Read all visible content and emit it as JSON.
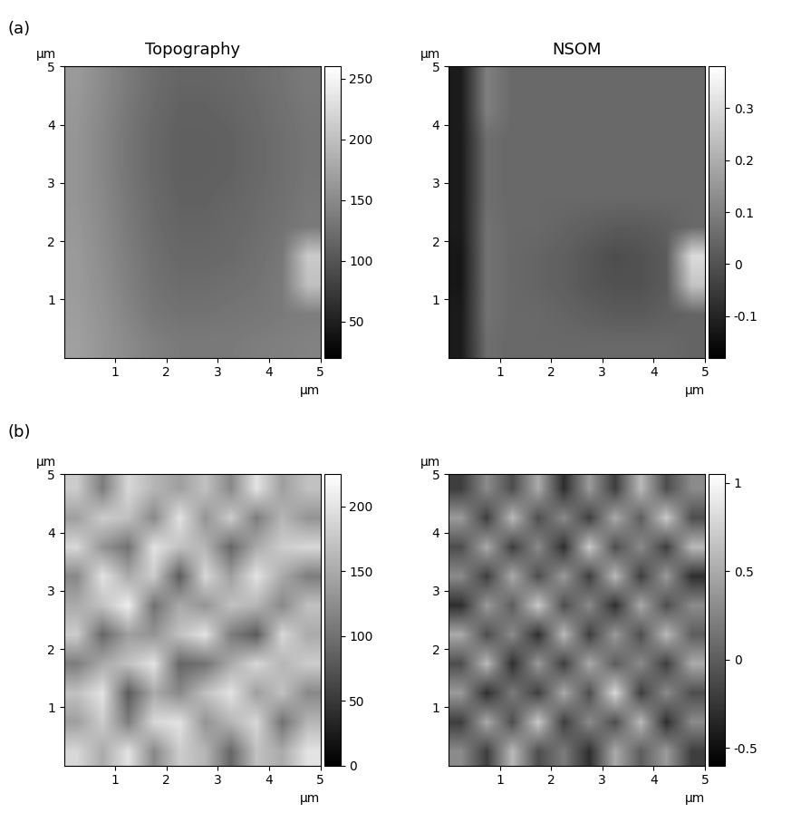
{
  "panel_labels": [
    "(a)",
    "(b)"
  ],
  "chart_data": [
    {
      "type": "heatmap",
      "title": "Topography",
      "x_label": "μm",
      "y_label": "μm",
      "xlim": [
        0,
        5
      ],
      "ylim": [
        0,
        5
      ],
      "xticks": [
        1,
        2,
        3,
        4,
        5
      ],
      "yticks": [
        1,
        2,
        3,
        4,
        5
      ],
      "color": "gray",
      "clim": [
        20,
        260
      ],
      "cticks": [
        50,
        100,
        150,
        200,
        250
      ],
      "cells": [
        [
          170,
          160,
          150,
          140,
          135,
          135,
          135,
          138,
          140,
          142
        ],
        [
          168,
          158,
          145,
          132,
          128,
          128,
          130,
          132,
          135,
          138
        ],
        [
          165,
          155,
          140,
          128,
          122,
          122,
          125,
          128,
          135,
          200
        ],
        [
          165,
          152,
          138,
          125,
          118,
          118,
          120,
          125,
          132,
          210
        ],
        [
          162,
          150,
          135,
          122,
          115,
          115,
          118,
          122,
          128,
          135
        ],
        [
          160,
          148,
          132,
          120,
          112,
          112,
          115,
          120,
          125,
          132
        ],
        [
          160,
          146,
          130,
          118,
          110,
          110,
          112,
          118,
          124,
          130
        ],
        [
          160,
          146,
          130,
          118,
          110,
          110,
          112,
          118,
          124,
          130
        ],
        [
          162,
          148,
          132,
          120,
          112,
          112,
          115,
          120,
          126,
          132
        ],
        [
          165,
          150,
          135,
          122,
          115,
          115,
          118,
          122,
          128,
          135
        ]
      ]
    },
    {
      "type": "heatmap",
      "title": "NSOM",
      "x_label": "μm",
      "y_label": "μm",
      "xlim": [
        0,
        5
      ],
      "ylim": [
        0,
        5
      ],
      "xticks": [
        1,
        2,
        3,
        4,
        5
      ],
      "yticks": [
        1,
        2,
        3,
        4,
        5
      ],
      "color": "gray",
      "clim": [
        -0.18,
        0.38
      ],
      "cticks": [
        -0.1,
        0,
        0.1,
        0.2,
        0.3
      ],
      "cells": [
        [
          -0.12,
          0.06,
          0.05,
          0.05,
          0.05,
          0.05,
          0.05,
          0.05,
          0.05,
          0.04
        ],
        [
          -0.12,
          0.07,
          0.05,
          0.05,
          0.04,
          0.03,
          0.02,
          0.02,
          0.03,
          0.04
        ],
        [
          -0.13,
          0.07,
          0.05,
          0.04,
          0.03,
          0.01,
          0.0,
          0.0,
          0.02,
          0.25
        ],
        [
          -0.13,
          0.07,
          0.05,
          0.04,
          0.03,
          0.01,
          -0.01,
          0.0,
          0.02,
          0.3
        ],
        [
          -0.12,
          0.07,
          0.05,
          0.05,
          0.04,
          0.03,
          0.02,
          0.02,
          0.03,
          0.05
        ],
        [
          -0.12,
          0.06,
          0.05,
          0.05,
          0.05,
          0.05,
          0.05,
          0.05,
          0.05,
          0.05
        ],
        [
          -0.12,
          0.06,
          0.05,
          0.05,
          0.05,
          0.05,
          0.05,
          0.05,
          0.05,
          0.05
        ],
        [
          -0.12,
          0.06,
          0.05,
          0.05,
          0.05,
          0.05,
          0.05,
          0.05,
          0.05,
          0.05
        ],
        [
          -0.12,
          0.1,
          0.05,
          0.05,
          0.05,
          0.05,
          0.05,
          0.05,
          0.05,
          0.05
        ],
        [
          -0.12,
          0.1,
          0.05,
          0.05,
          0.05,
          0.05,
          0.05,
          0.05,
          0.05,
          0.05
        ]
      ]
    },
    {
      "type": "heatmap",
      "x_label": "μm",
      "y_label": "μm",
      "xlim": [
        0,
        5
      ],
      "ylim": [
        0,
        5
      ],
      "xticks": [
        1,
        2,
        3,
        4,
        5
      ],
      "yticks": [
        1,
        2,
        3,
        4,
        5
      ],
      "color": "gray",
      "clim": [
        0,
        225
      ],
      "cticks": [
        0,
        50,
        100,
        150,
        200
      ],
      "cells": [
        [
          190,
          150,
          200,
          120,
          180,
          160,
          90,
          170,
          150,
          200
        ],
        [
          140,
          180,
          110,
          190,
          200,
          130,
          160,
          190,
          100,
          160
        ],
        [
          170,
          200,
          80,
          150,
          120,
          170,
          200,
          140,
          170,
          120
        ],
        [
          110,
          150,
          170,
          200,
          90,
          100,
          150,
          190,
          160,
          180
        ],
        [
          180,
          90,
          140,
          130,
          170,
          200,
          110,
          80,
          190,
          150
        ],
        [
          150,
          170,
          210,
          100,
          150,
          130,
          170,
          160,
          120,
          170
        ],
        [
          120,
          200,
          150,
          180,
          80,
          190,
          140,
          200,
          150,
          110
        ],
        [
          190,
          130,
          100,
          200,
          170,
          160,
          90,
          150,
          180,
          190
        ],
        [
          140,
          180,
          170,
          120,
          200,
          130,
          180,
          110,
          160,
          130
        ],
        [
          180,
          110,
          190,
          160,
          140,
          170,
          120,
          200,
          140,
          170
        ]
      ]
    },
    {
      "type": "heatmap",
      "x_label": "μm",
      "y_label": "μm",
      "xlim": [
        0,
        5
      ],
      "ylim": [
        0,
        5
      ],
      "xticks": [
        1,
        2,
        3,
        4,
        5
      ],
      "yticks": [
        1,
        2,
        3,
        4,
        5
      ],
      "color": "gray",
      "clim": [
        -0.6,
        1.05
      ],
      "cticks": [
        -0.5,
        0,
        0.5,
        1
      ],
      "cells": [
        [
          0.3,
          -0.2,
          0.6,
          -0.1,
          0.2,
          -0.3,
          0.5,
          0.0,
          0.4,
          -0.2
        ],
        [
          -0.2,
          0.5,
          -0.1,
          0.7,
          -0.2,
          0.3,
          -0.1,
          0.6,
          -0.3,
          0.3
        ],
        [
          0.4,
          -0.3,
          0.2,
          -0.2,
          0.5,
          -0.1,
          0.8,
          -0.2,
          0.3,
          -0.1
        ],
        [
          -0.1,
          0.6,
          -0.3,
          0.4,
          -0.2,
          0.5,
          0.0,
          0.3,
          -0.2,
          0.5
        ],
        [
          0.5,
          -0.1,
          0.3,
          -0.3,
          0.6,
          -0.2,
          0.4,
          -0.1,
          0.6,
          0.0
        ],
        [
          -0.3,
          0.4,
          0.0,
          0.7,
          -0.1,
          0.3,
          -0.3,
          0.5,
          -0.1,
          0.3
        ],
        [
          0.3,
          -0.2,
          0.5,
          -0.1,
          0.4,
          -0.2,
          0.6,
          -0.2,
          0.4,
          -0.3
        ],
        [
          -0.1,
          0.5,
          -0.2,
          0.3,
          -0.3,
          0.7,
          -0.1,
          0.3,
          -0.2,
          0.6
        ],
        [
          0.4,
          -0.2,
          0.6,
          -0.1,
          0.3,
          -0.2,
          0.5,
          0.0,
          0.7,
          -0.1
        ],
        [
          -0.2,
          0.3,
          -0.1,
          0.5,
          -0.3,
          0.4,
          -0.2,
          0.6,
          -0.1,
          0.3
        ]
      ]
    }
  ]
}
